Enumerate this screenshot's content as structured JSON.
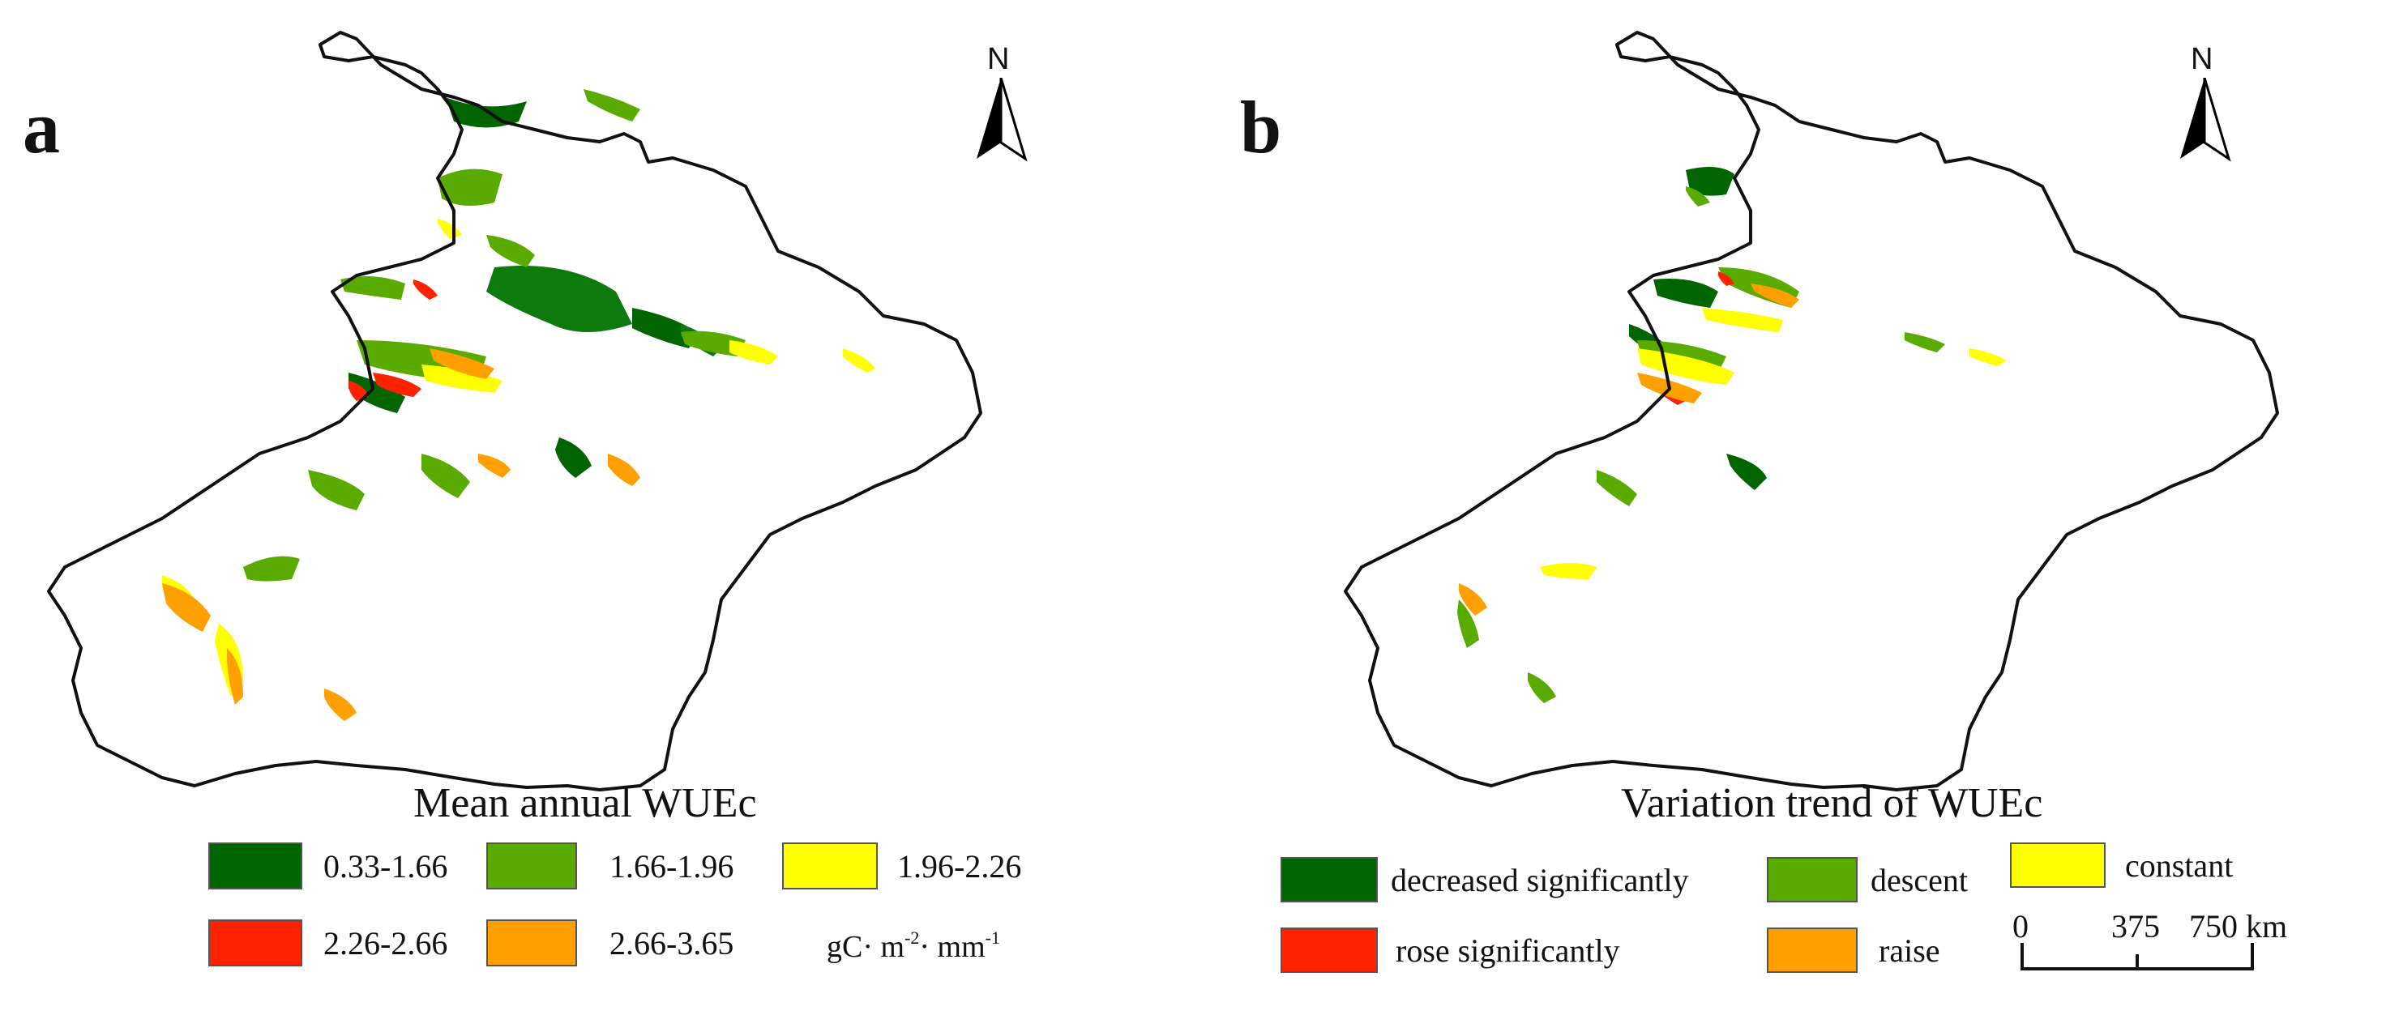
{
  "panel_a": {
    "letter": "a",
    "north_label": "N",
    "legend_title": "Mean annual WUEc",
    "unit": {
      "base": "gC· m",
      "exp1": "-2",
      "mid": "· mm",
      "exp2": "-1"
    },
    "legend": [
      {
        "label": "0.33-1.66",
        "color": "#006400"
      },
      {
        "label": "1.66-1.96",
        "color": "#5aab00"
      },
      {
        "label": "1.96-2.26",
        "color": "#ffff00"
      },
      {
        "label": "2.26-2.66",
        "color": "#ff2200"
      },
      {
        "label": "2.66-3.65",
        "color": "#ff9f00"
      }
    ]
  },
  "panel_b": {
    "letter": "b",
    "north_label": "N",
    "legend_title": "Variation trend of WUEc",
    "legend": [
      {
        "label": "decreased significantly",
        "color": "#006400"
      },
      {
        "label": "descent",
        "color": "#5aab00"
      },
      {
        "label": "constant",
        "color": "#ffff00"
      },
      {
        "label": "rose significantly",
        "color": "#ff2200"
      },
      {
        "label": "raise",
        "color": "#ff9f00"
      }
    ],
    "scale": {
      "labels": [
        "0",
        "375",
        "750 km"
      ]
    }
  },
  "colors": {
    "boundary": "#111111",
    "background": "#ffffff"
  }
}
